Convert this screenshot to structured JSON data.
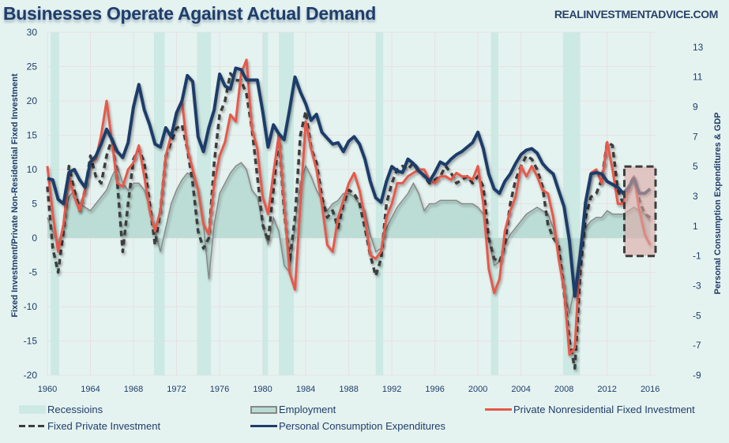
{
  "header": {
    "title": "Businesses Operate Against Actual Demand",
    "site": "REALINVESTMENTADVICE.COM"
  },
  "chart_data": {
    "type": "line",
    "title": "Businesses Operate Against Actual Demand",
    "xlabel": "",
    "ylabel": "Fixed Investment/Private Non-Residential Fixed Investment",
    "y2label": "Personal Consumption Expenditures & GDP",
    "xlim": [
      1960,
      2016.5
    ],
    "ylim": [
      -20,
      30
    ],
    "y2lim": [
      -9,
      14
    ],
    "x_ticks": [
      "1960",
      "1964",
      "1968",
      "1972",
      "1976",
      "1980",
      "1984",
      "1988",
      "1992",
      "1996",
      "2000",
      "2004",
      "2008",
      "2012",
      "2016"
    ],
    "y_ticks": [
      "30",
      "25",
      "20",
      "15",
      "10",
      "5",
      "0",
      "-5",
      "-10",
      "-15",
      "-20"
    ],
    "y2_ticks": [
      "13",
      "11",
      "9",
      "7",
      "5",
      "3",
      "1",
      "-1",
      "-3",
      "-5",
      "-7",
      "-9"
    ],
    "grid": true,
    "legend_position": "bottom",
    "recessions": [
      [
        1960.3,
        1961.1
      ],
      [
        1969.9,
        1970.9
      ],
      [
        1973.9,
        1975.2
      ],
      [
        1980.0,
        1980.5
      ],
      [
        1981.5,
        1982.9
      ],
      [
        1990.5,
        1991.2
      ],
      [
        2001.2,
        2001.9
      ],
      [
        2007.9,
        2009.5
      ]
    ],
    "highlight_box": {
      "x": [
        2013.6,
        2016.5
      ],
      "y2": [
        -1,
        5
      ],
      "label": ""
    },
    "series": [
      {
        "name": "Personal Consumption Expenditures",
        "axis": "right",
        "color": "#1f3d6b",
        "style": "solid-thick",
        "x": [
          1960,
          1960.5,
          1961,
          1961.5,
          1962,
          1962.5,
          1963,
          1963.5,
          1964,
          1964.5,
          1965,
          1965.5,
          1966,
          1966.5,
          1967,
          1967.5,
          1968,
          1968.5,
          1969,
          1969.5,
          1970,
          1970.5,
          1971,
          1971.5,
          1972,
          1972.5,
          1973,
          1973.5,
          1974,
          1974.5,
          1975,
          1975.5,
          1976,
          1976.5,
          1977,
          1977.5,
          1978,
          1978.5,
          1979,
          1979.5,
          1980,
          1980.5,
          1981,
          1981.5,
          1982,
          1982.5,
          1983,
          1983.5,
          1984,
          1984.5,
          1985,
          1985.5,
          1986,
          1986.5,
          1987,
          1987.5,
          1988,
          1988.5,
          1989,
          1989.5,
          1990,
          1990.5,
          1991,
          1991.5,
          1992,
          1992.5,
          1993,
          1993.5,
          1994,
          1994.5,
          1995,
          1995.5,
          1996,
          1996.5,
          1997,
          1997.5,
          1998,
          1998.5,
          1999,
          1999.5,
          2000,
          2000.5,
          2001,
          2001.5,
          2002,
          2002.5,
          2003,
          2003.5,
          2004,
          2004.5,
          2005,
          2005.5,
          2006,
          2006.5,
          2007,
          2007.5,
          2008,
          2008.5,
          2009,
          2009.5,
          2010,
          2010.5,
          2011,
          2011.5,
          2012,
          2012.5,
          2013,
          2013.5,
          2014,
          2014.5,
          2015,
          2015.5,
          2016
        ],
        "values": [
          4.2,
          4.1,
          2.8,
          2.5,
          4.6,
          4.8,
          4.1,
          3.6,
          5.3,
          5.7,
          6.5,
          7.5,
          6.8,
          6.0,
          5.6,
          6.6,
          9.0,
          10.5,
          8.8,
          7.8,
          6.5,
          6.3,
          7.6,
          7.0,
          8.6,
          9.4,
          11.1,
          10.7,
          7.0,
          6.0,
          7.6,
          8.8,
          11.2,
          10.4,
          10.2,
          11.6,
          11.5,
          10.8,
          10.8,
          10.8,
          8.7,
          6.3,
          7.8,
          7.2,
          6.8,
          8.8,
          11.0,
          10.0,
          9.2,
          8.1,
          8.5,
          7.3,
          6.9,
          6.5,
          6.6,
          6.0,
          6.7,
          7.0,
          6.5,
          5.5,
          4.0,
          2.9,
          2.6,
          4.0,
          5.0,
          4.7,
          4.6,
          5.5,
          5.2,
          4.7,
          4.4,
          4.0,
          4.6,
          5.3,
          5.1,
          5.5,
          5.8,
          6.0,
          6.3,
          6.6,
          7.3,
          6.2,
          4.5,
          3.5,
          3.2,
          4.0,
          4.5,
          5.2,
          5.8,
          6.1,
          6.2,
          5.9,
          5.2,
          4.8,
          4.5,
          3.4,
          2.3,
          0.0,
          -3.7,
          -1.0,
          2.6,
          4.5,
          4.6,
          4.5,
          4.0,
          3.8,
          3.6,
          3.2,
          3.6,
          4.2,
          3.2,
          3.2,
          3.5
        ]
      },
      {
        "name": "Private Nonresidential Fixed Investment",
        "axis": "left",
        "color": "#e8584a",
        "style": "solid",
        "x": [
          1960,
          1960.5,
          1961,
          1961.5,
          1962,
          1962.5,
          1963,
          1963.5,
          1964,
          1964.5,
          1965,
          1965.5,
          1966,
          1966.5,
          1967,
          1967.5,
          1968,
          1968.5,
          1969,
          1969.5,
          1970,
          1970.5,
          1971,
          1971.5,
          1972,
          1972.5,
          1973,
          1973.5,
          1974,
          1974.5,
          1975,
          1975.5,
          1976,
          1976.5,
          1977,
          1977.5,
          1978,
          1978.5,
          1979,
          1979.5,
          1980,
          1980.5,
          1981,
          1981.5,
          1982,
          1982.5,
          1983,
          1983.5,
          1984,
          1984.5,
          1985,
          1985.5,
          1986,
          1986.5,
          1987,
          1987.5,
          1988,
          1988.5,
          1989,
          1989.5,
          1990,
          1990.5,
          1991,
          1991.5,
          1992,
          1992.5,
          1993,
          1993.5,
          1994,
          1994.5,
          1995,
          1995.5,
          1996,
          1996.5,
          1997,
          1997.5,
          1998,
          1998.5,
          1999,
          1999.5,
          2000,
          2000.5,
          2001,
          2001.5,
          2002,
          2002.5,
          2003,
          2003.5,
          2004,
          2004.5,
          2005,
          2005.5,
          2006,
          2006.5,
          2007,
          2007.5,
          2008,
          2008.5,
          2009,
          2009.5,
          2010,
          2010.5,
          2011,
          2011.5,
          2012,
          2012.5,
          2013,
          2013.5,
          2014,
          2014.5,
          2015,
          2015.5,
          2016
        ],
        "values": [
          10.5,
          3.5,
          -2.0,
          2.0,
          9.0,
          6.0,
          4.0,
          7.0,
          11.0,
          11.5,
          15.0,
          20.0,
          14.0,
          8.0,
          7.5,
          10.0,
          11.0,
          13.5,
          9.0,
          4.0,
          1.0,
          4.0,
          12.0,
          15.0,
          18.0,
          20.0,
          13.0,
          10.0,
          7.0,
          2.0,
          0.5,
          8.0,
          12.0,
          14.0,
          18.0,
          17.0,
          24.0,
          26.0,
          16.0,
          13.0,
          6.0,
          3.5,
          9.5,
          15.0,
          5.0,
          -5.0,
          -7.5,
          5.0,
          17.0,
          13.0,
          10.0,
          5.0,
          -1.0,
          -2.0,
          3.0,
          5.5,
          8.0,
          9.5,
          7.0,
          3.0,
          -2.5,
          -3.0,
          -2.0,
          3.0,
          5.0,
          8.0,
          8.0,
          9.0,
          9.5,
          10.0,
          10.0,
          8.5,
          8.0,
          9.0,
          9.0,
          8.5,
          9.5,
          9.0,
          9.0,
          8.5,
          10.5,
          5.0,
          -4.5,
          -8.0,
          -6.0,
          1.0,
          4.0,
          6.0,
          10.5,
          9.0,
          10.5,
          9.0,
          7.0,
          6.5,
          3.0,
          -3.0,
          -7.5,
          -17.0,
          -16.0,
          -2.0,
          5.0,
          9.5,
          10.0,
          8.0,
          14.0,
          10.0,
          5.0,
          5.0,
          7.0,
          9.0,
          4.0,
          0.5,
          -1.0
        ]
      },
      {
        "name": "Fixed Private Investment",
        "axis": "left",
        "color": "#3d3d3d",
        "style": "dashed",
        "x": [
          1960,
          1960.5,
          1961,
          1961.5,
          1962,
          1962.5,
          1963,
          1963.5,
          1964,
          1964.5,
          1965,
          1965.5,
          1966,
          1966.5,
          1967,
          1967.5,
          1968,
          1968.5,
          1969,
          1969.5,
          1970,
          1970.5,
          1971,
          1971.5,
          1972,
          1972.5,
          1973,
          1973.5,
          1974,
          1974.5,
          1975,
          1975.5,
          1976,
          1976.5,
          1977,
          1977.5,
          1978,
          1978.5,
          1979,
          1979.5,
          1980,
          1980.5,
          1981,
          1981.5,
          1982,
          1982.5,
          1983,
          1983.5,
          1984,
          1984.5,
          1985,
          1985.5,
          1986,
          1986.5,
          1987,
          1987.5,
          1988,
          1988.5,
          1989,
          1989.5,
          1990,
          1990.5,
          1991,
          1991.5,
          1992,
          1992.5,
          1993,
          1993.5,
          1994,
          1994.5,
          1995,
          1995.5,
          1996,
          1996.5,
          1997,
          1997.5,
          1998,
          1998.5,
          1999,
          1999.5,
          2000,
          2000.5,
          2001,
          2001.5,
          2002,
          2002.5,
          2003,
          2003.5,
          2004,
          2004.5,
          2005,
          2005.5,
          2006,
          2006.5,
          2007,
          2007.5,
          2008,
          2008.5,
          2009,
          2009.5,
          2010,
          2010.5,
          2011,
          2011.5,
          2012,
          2012.5,
          2013,
          2013.5,
          2014,
          2014.5,
          2015,
          2015.5,
          2016
        ],
        "values": [
          7.5,
          -1.5,
          -5.0,
          1.0,
          10.5,
          7.0,
          4.0,
          7.0,
          12.0,
          9.0,
          8.0,
          12.0,
          14.5,
          8.0,
          -2.0,
          5.0,
          11.5,
          13.0,
          11.0,
          5.0,
          -1.0,
          4.0,
          12.0,
          14.0,
          16.0,
          16.5,
          13.0,
          8.0,
          1.0,
          -1.5,
          0.0,
          11.0,
          18.0,
          20.0,
          24.0,
          23.0,
          23.0,
          21.0,
          16.0,
          9.0,
          2.0,
          -0.5,
          7.0,
          15.0,
          4.0,
          -3.5,
          3.0,
          15.0,
          18.5,
          13.0,
          11.0,
          6.0,
          3.0,
          4.0,
          1.5,
          5.0,
          7.0,
          6.5,
          5.0,
          1.5,
          -2.5,
          -5.5,
          -3.0,
          5.0,
          8.0,
          10.0,
          10.5,
          10.0,
          11.0,
          10.0,
          9.0,
          8.0,
          8.5,
          9.0,
          10.5,
          9.5,
          8.0,
          8.5,
          9.0,
          8.0,
          9.0,
          7.5,
          0.0,
          -3.0,
          -3.5,
          -1.0,
          5.0,
          8.5,
          10.5,
          12.0,
          11.5,
          10.0,
          7.5,
          2.0,
          0.0,
          -1.0,
          -8.0,
          -15.0,
          -19.0,
          -5.0,
          3.0,
          6.0,
          6.5,
          8.5,
          14.0,
          13.5,
          7.0,
          5.0,
          7.5,
          9.0,
          5.5,
          3.5,
          3.0
        ]
      },
      {
        "name": "Employment",
        "axis": "left",
        "color": "#888888",
        "fill": "#b9dbd3",
        "style": "area",
        "x": [
          1960,
          1960.5,
          1961,
          1961.5,
          1962,
          1962.5,
          1963,
          1963.5,
          1964,
          1964.5,
          1965,
          1965.5,
          1966,
          1966.5,
          1967,
          1967.5,
          1968,
          1968.5,
          1969,
          1969.5,
          1970,
          1970.5,
          1971,
          1971.5,
          1972,
          1972.5,
          1973,
          1973.5,
          1974,
          1974.5,
          1975,
          1975.5,
          1976,
          1976.5,
          1977,
          1977.5,
          1978,
          1978.5,
          1979,
          1979.5,
          1980,
          1980.5,
          1981,
          1981.5,
          1982,
          1982.5,
          1983,
          1983.5,
          1984,
          1984.5,
          1985,
          1985.5,
          1986,
          1986.5,
          1987,
          1987.5,
          1988,
          1988.5,
          1989,
          1989.5,
          1990,
          1990.5,
          1991,
          1991.5,
          1992,
          1992.5,
          1993,
          1993.5,
          1994,
          1994.5,
          1995,
          1995.5,
          1996,
          1996.5,
          1997,
          1997.5,
          1998,
          1998.5,
          1999,
          1999.5,
          2000,
          2000.5,
          2001,
          2001.5,
          2002,
          2002.5,
          2003,
          2003.5,
          2004,
          2004.5,
          2005,
          2005.5,
          2006,
          2006.5,
          2007,
          2007.5,
          2008,
          2008.5,
          2009,
          2009.5,
          2010,
          2010.5,
          2011,
          2011.5,
          2012,
          2012.5,
          2013,
          2013.5,
          2014,
          2014.5,
          2015,
          2015.5,
          2016
        ],
        "values": [
          3.0,
          1.0,
          -1.0,
          2.0,
          6.0,
          7.0,
          5.0,
          4.5,
          4.0,
          5.0,
          6.0,
          7.0,
          9.0,
          10.5,
          8.0,
          7.0,
          8.0,
          8.0,
          7.0,
          4.5,
          1.0,
          -2.0,
          1.5,
          5.0,
          7.0,
          8.5,
          9.5,
          9.0,
          7.0,
          2.0,
          -6.0,
          2.0,
          6.5,
          8.0,
          9.5,
          10.5,
          11.0,
          10.0,
          7.0,
          6.0,
          2.0,
          -1.0,
          3.0,
          1.0,
          -4.0,
          -5.0,
          2.0,
          8.0,
          10.5,
          9.0,
          7.0,
          5.5,
          4.0,
          5.0,
          5.5,
          6.5,
          6.5,
          6.0,
          5.0,
          4.0,
          0.5,
          -2.0,
          -1.5,
          1.5,
          3.0,
          4.5,
          5.5,
          6.5,
          8.0,
          6.5,
          4.0,
          5.0,
          5.0,
          5.5,
          5.5,
          5.5,
          5.5,
          5.0,
          5.0,
          5.0,
          4.5,
          3.5,
          0.0,
          -4.0,
          -3.5,
          -1.0,
          0.5,
          1.5,
          2.5,
          3.5,
          4.0,
          4.5,
          4.0,
          3.5,
          1.5,
          -2.0,
          -8.0,
          -11.0,
          -7.0,
          -1.0,
          1.5,
          2.5,
          3.0,
          3.0,
          4.0,
          3.5,
          3.5,
          3.5,
          4.0,
          4.5,
          4.0,
          3.5,
          2.5
        ]
      }
    ]
  },
  "legend": {
    "recessions": "Recessioins",
    "employment": "Employment",
    "pnfi": "Private Nonresidential Fixed Investment",
    "fpi": "Fixed Private Investment",
    "pce": "Personal Consumption Expenditures"
  },
  "colors": {
    "background": "#e5f3f0",
    "recession": "#cde9e3",
    "grid": "#e6e0e2",
    "title": "#1f3d6b",
    "highlight_fill": "#dba9a5",
    "highlight_border": "#3d3d3d"
  }
}
